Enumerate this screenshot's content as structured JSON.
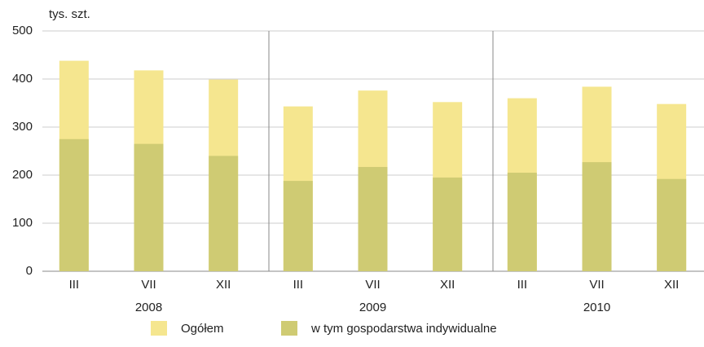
{
  "chart_data": {
    "type": "bar",
    "overlap": true,
    "unit_label": "tys. szt.",
    "groups": [
      "2008",
      "2009",
      "2010"
    ],
    "categories": [
      "III",
      "VII",
      "XII",
      "III",
      "VII",
      "XII",
      "III",
      "VII",
      "XII"
    ],
    "series": [
      {
        "name": "Ogółem",
        "color": "#f5e68f",
        "values": [
          438,
          418,
          399,
          343,
          376,
          352,
          360,
          384,
          348
        ]
      },
      {
        "name": "w tym gospodarstwa indywidualne",
        "color": "#cfcb73",
        "values": [
          275,
          265,
          240,
          188,
          217,
          195,
          205,
          227,
          192
        ]
      }
    ],
    "ylim": [
      0,
      500
    ],
    "yticks": [
      0,
      100,
      200,
      300,
      400,
      500
    ],
    "grid": true
  }
}
